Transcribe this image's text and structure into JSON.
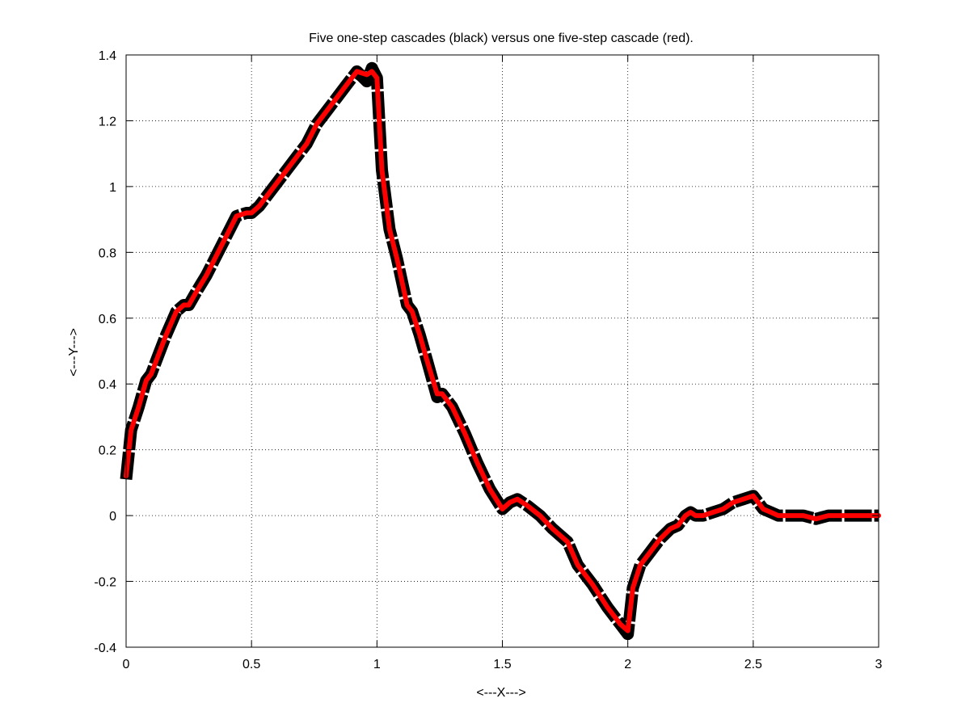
{
  "chart_data": {
    "type": "line",
    "title": "Five one-step cascades (black) versus one five-step cascade (red).",
    "xlabel": "<---X--->",
    "ylabel": "<---Y--->",
    "xlim": [
      0,
      3
    ],
    "ylim": [
      -0.4,
      1.4
    ],
    "xticks": [
      0,
      0.5,
      1,
      1.5,
      2,
      2.5,
      3
    ],
    "xtick_labels": [
      "0",
      "0.5",
      "1",
      "1.5",
      "2",
      "2.5",
      "3"
    ],
    "yticks": [
      -0.4,
      -0.2,
      0,
      0.2,
      0.4,
      0.6,
      0.8,
      1,
      1.2,
      1.4
    ],
    "ytick_labels": [
      "-0.4",
      "-0.2",
      "0",
      "0.2",
      "0.4",
      "0.6",
      "0.8",
      "1",
      "1.2",
      "1.4"
    ],
    "grid": true,
    "series": [
      {
        "color": "#000000",
        "style": "dashed-thick",
        "x": [
          0,
          0.02,
          0.05,
          0.08,
          0.1,
          0.13,
          0.16,
          0.2,
          0.23,
          0.25,
          0.28,
          0.32,
          0.36,
          0.4,
          0.44,
          0.48,
          0.5,
          0.53,
          0.56,
          0.6,
          0.64,
          0.68,
          0.72,
          0.76,
          0.8,
          0.84,
          0.88,
          0.92,
          0.96,
          0.98,
          1.0,
          1.02,
          1.05,
          1.08,
          1.12,
          1.14,
          1.17,
          1.2,
          1.24,
          1.26,
          1.3,
          1.35,
          1.4,
          1.45,
          1.5,
          1.53,
          1.56,
          1.6,
          1.65,
          1.7,
          1.76,
          1.8,
          1.86,
          1.92,
          1.97,
          2.0,
          2.02,
          2.05,
          2.09,
          2.13,
          2.17,
          2.2,
          2.23,
          2.25,
          2.27,
          2.3,
          2.34,
          2.38,
          2.42,
          2.46,
          2.5,
          2.52,
          2.54,
          2.57,
          2.6,
          2.65,
          2.7,
          2.75,
          2.8,
          2.85,
          2.9,
          2.95,
          3.0
        ],
        "y": [
          0.11,
          0.26,
          0.33,
          0.41,
          0.43,
          0.49,
          0.55,
          0.62,
          0.64,
          0.64,
          0.68,
          0.73,
          0.79,
          0.85,
          0.91,
          0.92,
          0.92,
          0.94,
          0.97,
          1.01,
          1.05,
          1.09,
          1.13,
          1.19,
          1.23,
          1.27,
          1.31,
          1.35,
          1.32,
          1.36,
          1.33,
          1.05,
          0.87,
          0.78,
          0.64,
          0.62,
          0.55,
          0.47,
          0.36,
          0.37,
          0.33,
          0.25,
          0.16,
          0.08,
          0.02,
          0.04,
          0.05,
          0.03,
          0.0,
          -0.04,
          -0.08,
          -0.15,
          -0.21,
          -0.28,
          -0.33,
          -0.36,
          -0.22,
          -0.15,
          -0.11,
          -0.07,
          -0.04,
          -0.03,
          0.0,
          0.01,
          0.0,
          0.0,
          0.01,
          0.02,
          0.04,
          0.05,
          0.06,
          0.04,
          0.02,
          0.01,
          0.0,
          0.0,
          0.0,
          -0.01,
          0.0,
          0.0,
          0.0,
          0.0,
          0.0
        ]
      },
      {
        "color": "#ff0000",
        "style": "solid",
        "x": [
          0,
          0.02,
          0.05,
          0.08,
          0.1,
          0.13,
          0.16,
          0.2,
          0.23,
          0.25,
          0.28,
          0.32,
          0.36,
          0.4,
          0.44,
          0.48,
          0.5,
          0.53,
          0.56,
          0.6,
          0.64,
          0.68,
          0.72,
          0.76,
          0.8,
          0.84,
          0.88,
          0.92,
          0.96,
          0.98,
          1.0,
          1.02,
          1.05,
          1.08,
          1.12,
          1.14,
          1.17,
          1.2,
          1.24,
          1.26,
          1.3,
          1.35,
          1.4,
          1.45,
          1.5,
          1.53,
          1.56,
          1.6,
          1.65,
          1.7,
          1.76,
          1.8,
          1.86,
          1.92,
          1.97,
          2.0,
          2.02,
          2.05,
          2.09,
          2.13,
          2.17,
          2.2,
          2.23,
          2.25,
          2.27,
          2.3,
          2.34,
          2.38,
          2.42,
          2.46,
          2.5,
          2.52,
          2.54,
          2.57,
          2.6,
          2.65,
          2.7,
          2.75,
          2.8,
          2.85,
          2.9,
          2.95,
          3.0
        ],
        "y": [
          0.12,
          0.26,
          0.33,
          0.41,
          0.43,
          0.49,
          0.55,
          0.62,
          0.64,
          0.64,
          0.68,
          0.73,
          0.79,
          0.85,
          0.91,
          0.92,
          0.92,
          0.94,
          0.97,
          1.01,
          1.05,
          1.09,
          1.13,
          1.19,
          1.23,
          1.27,
          1.31,
          1.35,
          1.34,
          1.35,
          1.33,
          1.05,
          0.87,
          0.78,
          0.64,
          0.62,
          0.55,
          0.47,
          0.37,
          0.37,
          0.33,
          0.25,
          0.16,
          0.08,
          0.02,
          0.04,
          0.05,
          0.03,
          0.0,
          -0.04,
          -0.08,
          -0.15,
          -0.21,
          -0.28,
          -0.33,
          -0.35,
          -0.22,
          -0.15,
          -0.11,
          -0.07,
          -0.04,
          -0.03,
          0.0,
          0.01,
          0.0,
          0.0,
          0.01,
          0.02,
          0.04,
          0.05,
          0.06,
          0.04,
          0.02,
          0.01,
          0.0,
          0.0,
          0.0,
          -0.01,
          0.0,
          0.0,
          0.0,
          0.0,
          0.0
        ]
      }
    ]
  }
}
